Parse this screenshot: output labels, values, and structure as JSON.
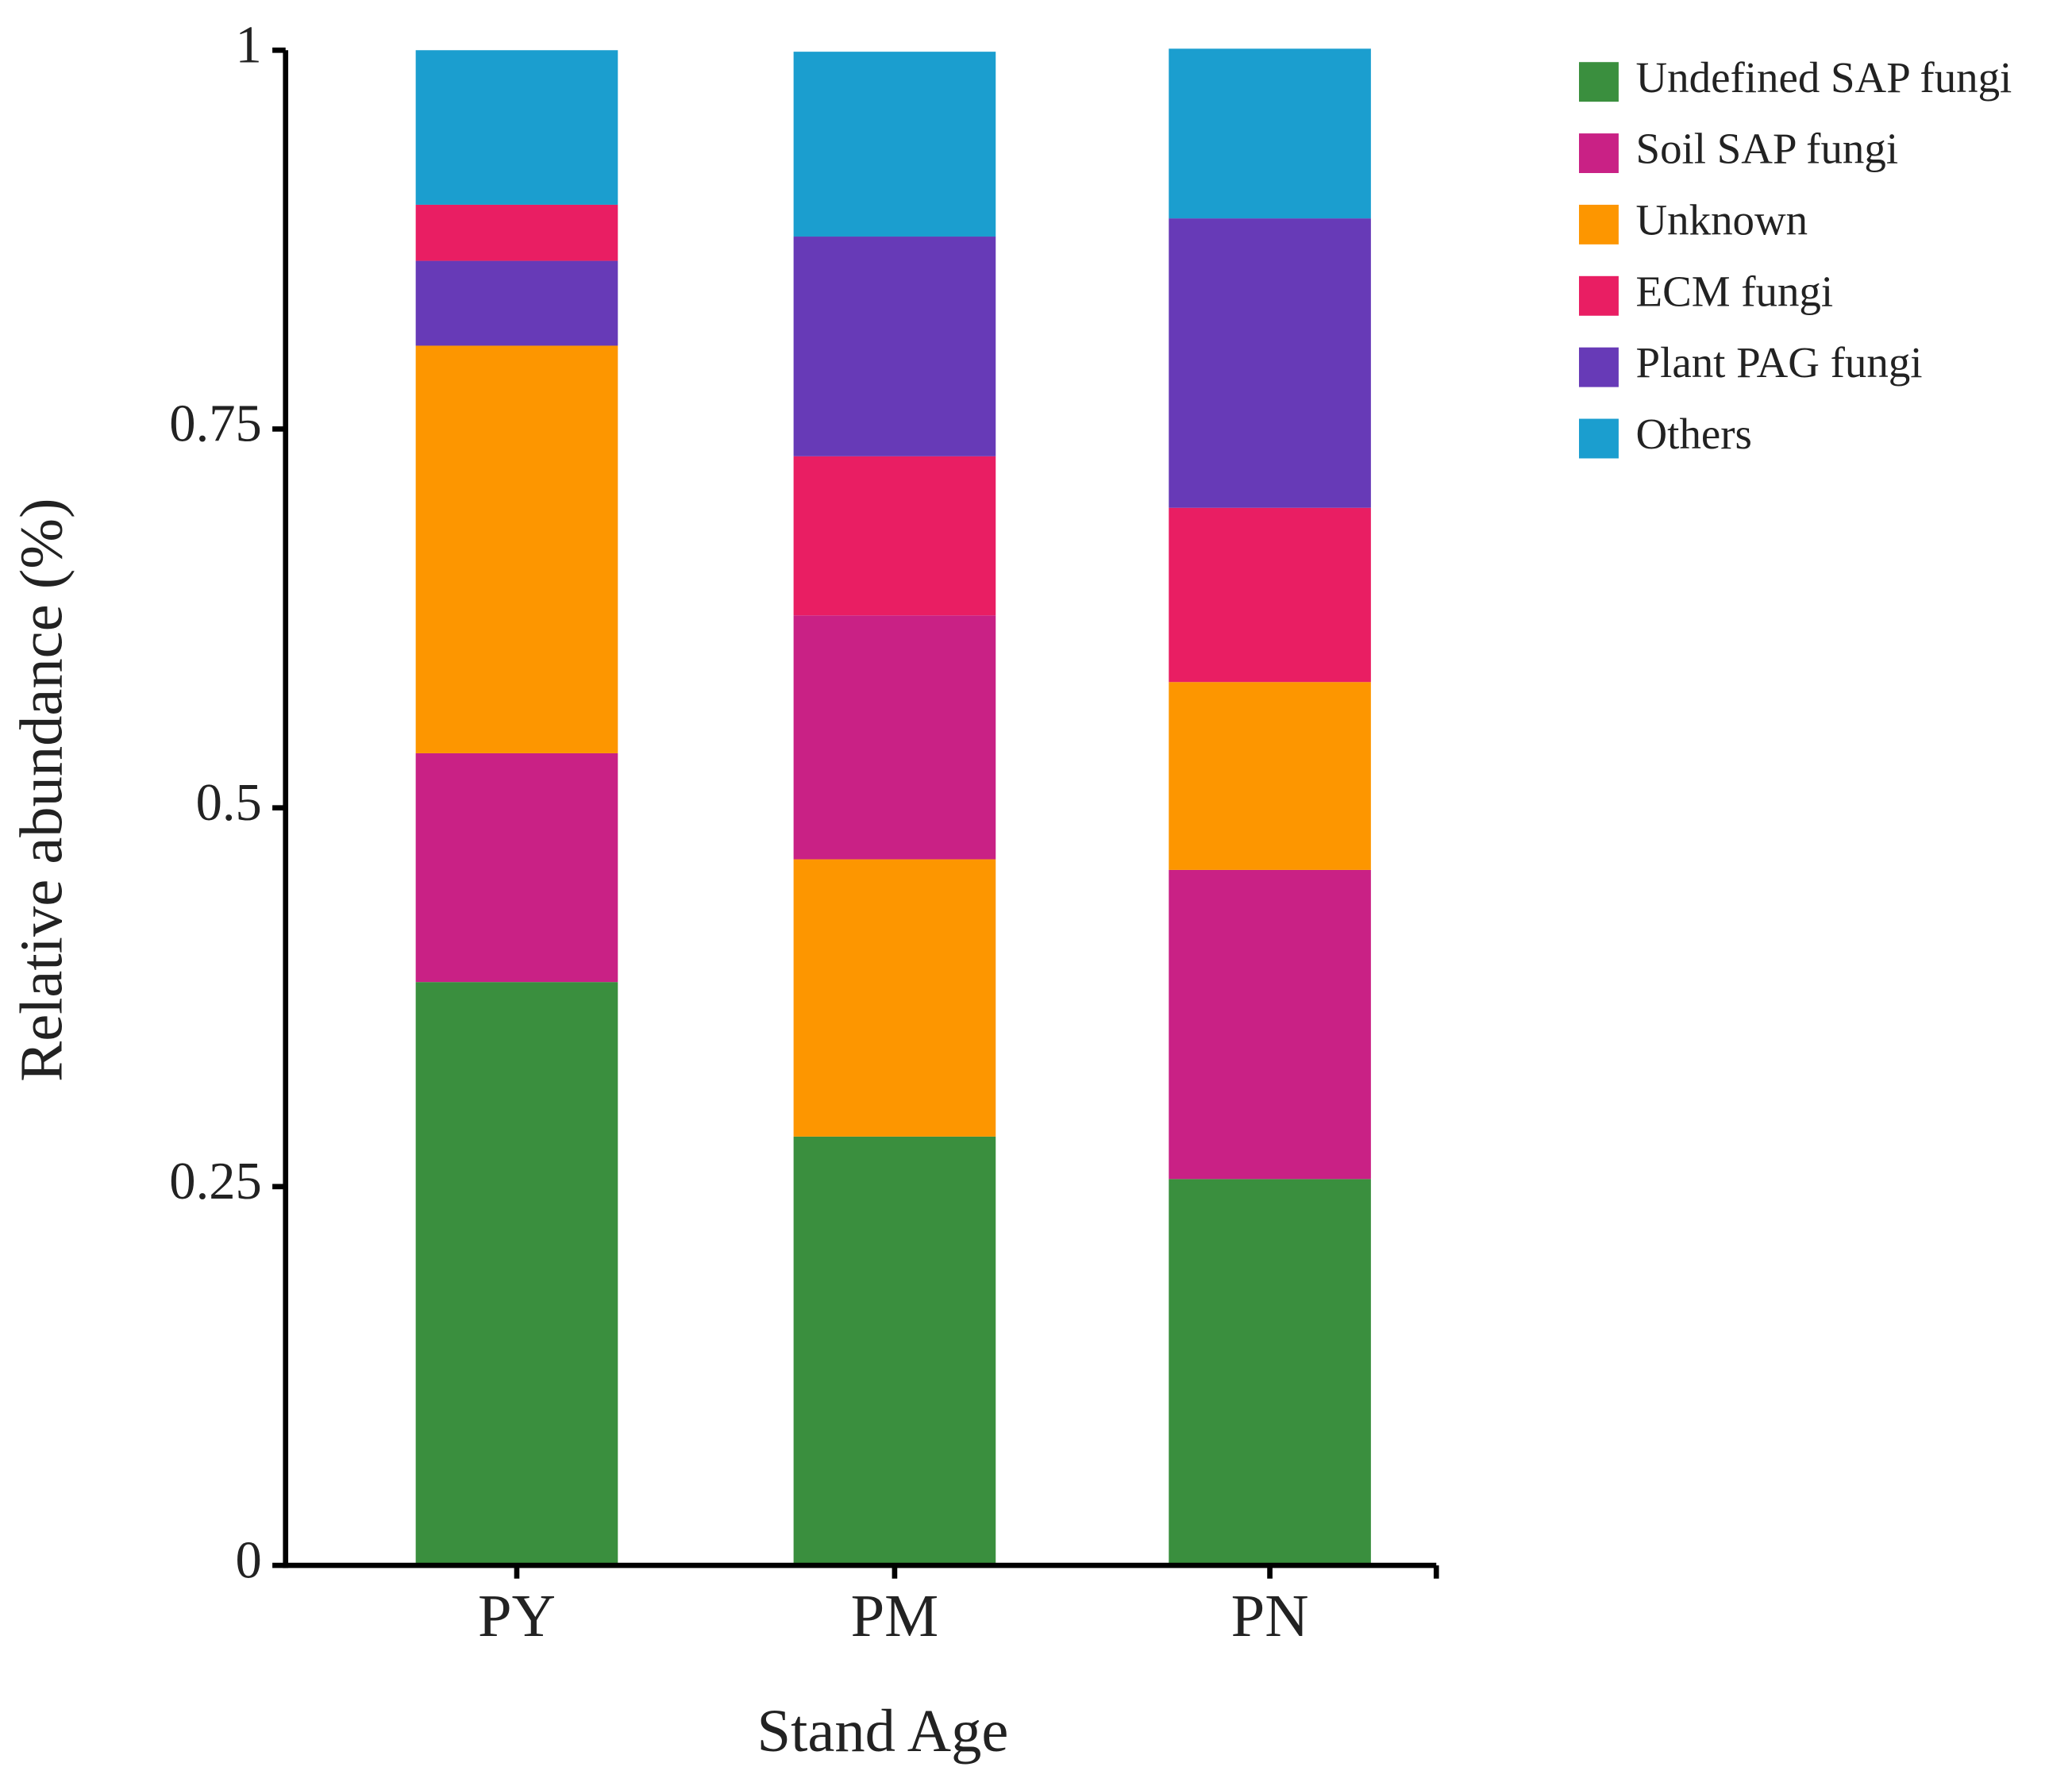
{
  "chart_data": {
    "type": "stacked_bar",
    "x_label": "Stand Age",
    "y_label": "Relative abundance (%)",
    "categories": [
      "PY",
      "PM",
      "PN"
    ],
    "series": [
      {
        "name": "Undefined SAP fungi",
        "color": "#3a8f3e",
        "values": [
          0.385,
          0.283,
          0.255
        ]
      },
      {
        "name": "Soil SAP fungi",
        "color": "#c92185",
        "values": [
          0.151,
          0.161,
          0.204
        ]
      },
      {
        "name": "Unknown",
        "color": "#fd9600",
        "values": [
          0.269,
          0.183,
          0.124
        ]
      },
      {
        "name": "ECM fungi",
        "color": "#e91e63",
        "values": [
          0.037,
          0.105,
          0.115
        ]
      },
      {
        "name": "Plant PAG fungi",
        "color": "#673ab7",
        "values": [
          0.056,
          0.145,
          0.191
        ]
      },
      {
        "name": "Others",
        "color": "#1b9ecf",
        "values": [
          0.102,
          0.122,
          0.112
        ]
      }
    ],
    "stack_order": [
      [
        0,
        1,
        2,
        4,
        3,
        5
      ],
      [
        0,
        2,
        1,
        3,
        4,
        5
      ],
      [
        0,
        1,
        2,
        3,
        4,
        5
      ]
    ],
    "ylim": [
      0,
      1
    ],
    "yticks": [
      0,
      0.25,
      0.5,
      0.75,
      1
    ],
    "legend": "right"
  }
}
